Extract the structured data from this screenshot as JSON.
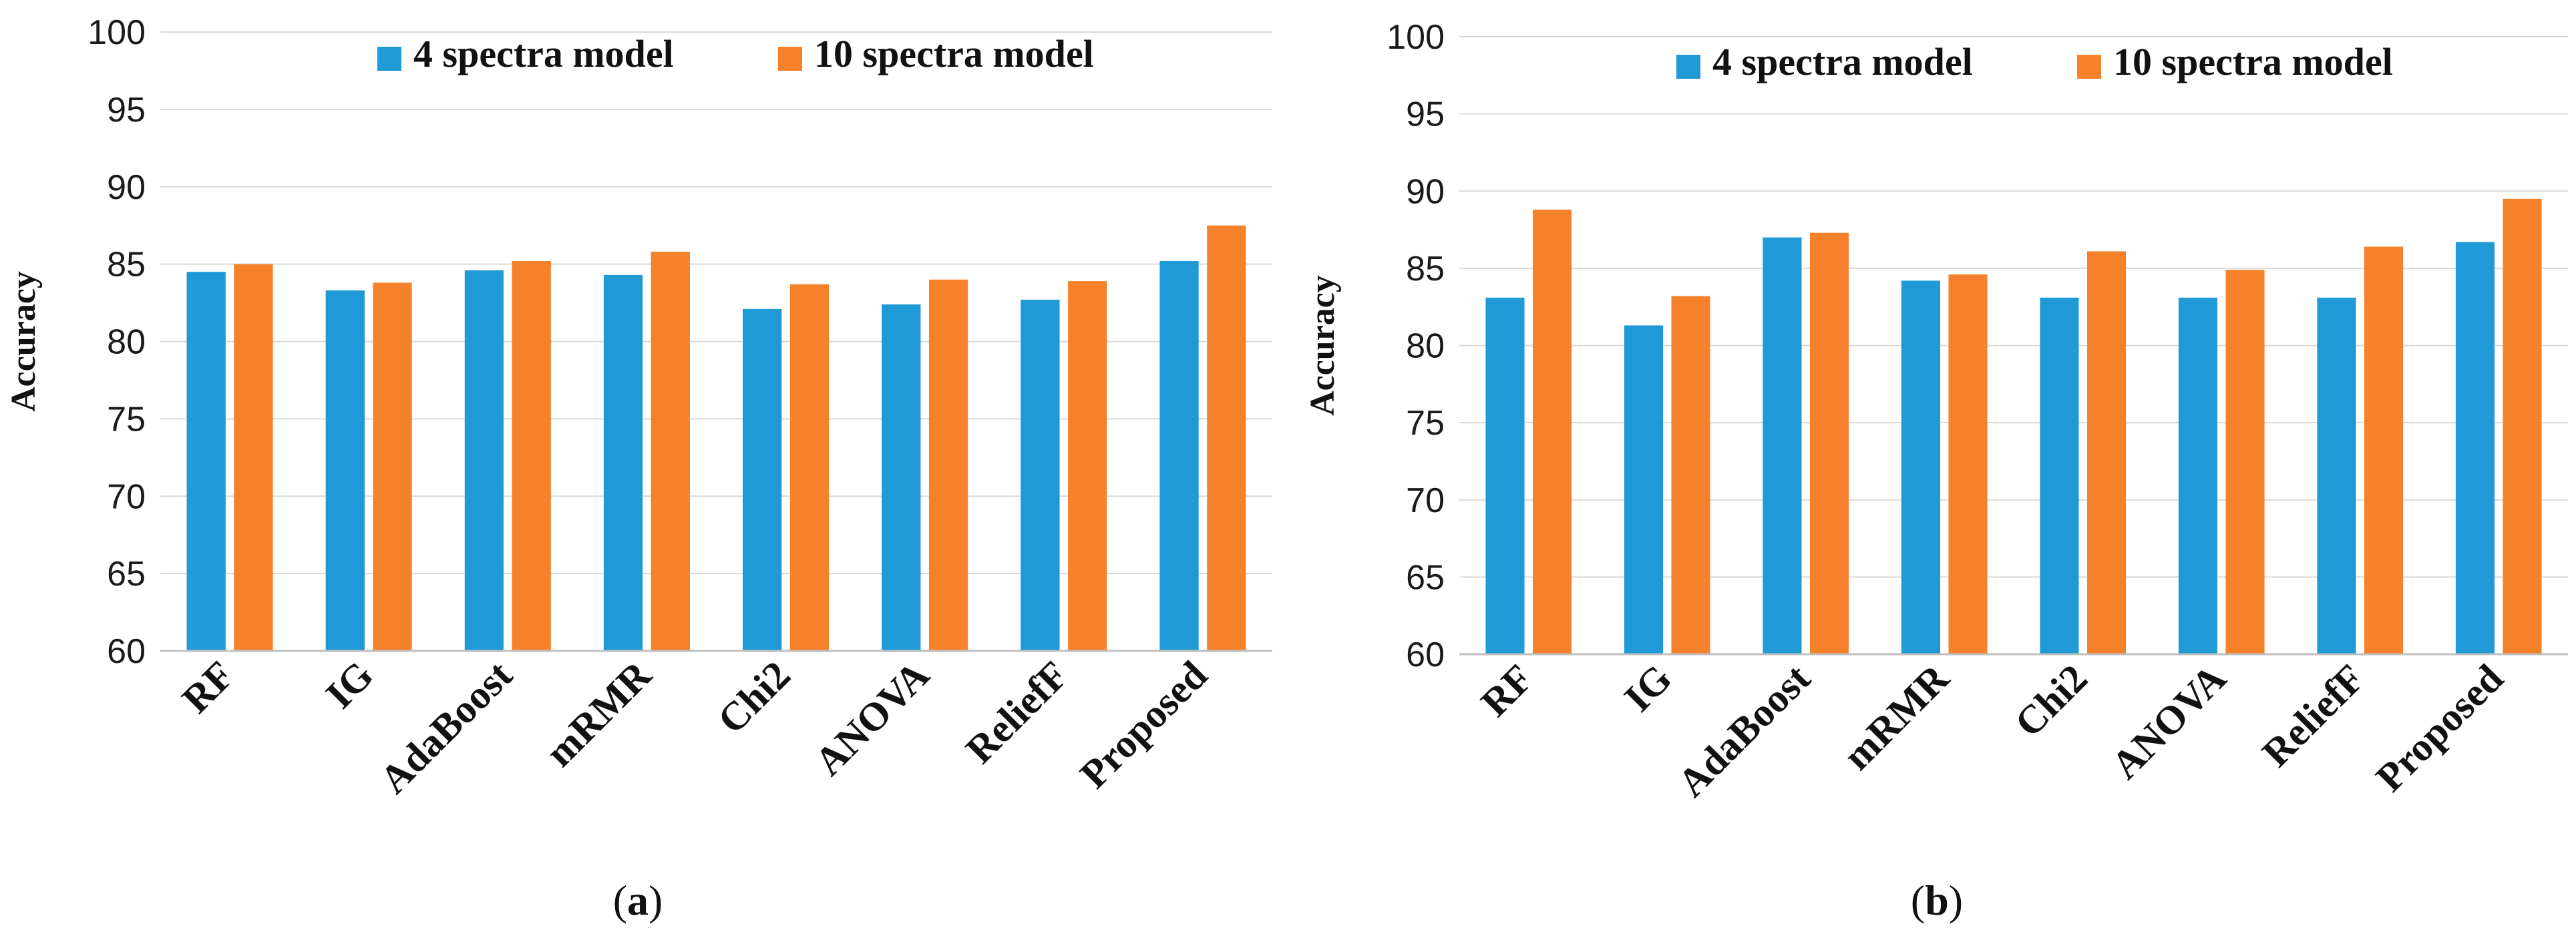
{
  "chart_data": [
    {
      "panel": "a",
      "type": "bar",
      "categories": [
        "RF",
        "IG",
        "AdaBoost",
        "mRMR",
        "Chi2",
        "ANOVA",
        "ReliefF",
        "Proposed"
      ],
      "series": [
        {
          "name": "4 spectra model",
          "color": "#1f9ad6",
          "values": [
            84.5,
            83.3,
            84.6,
            84.3,
            82.1,
            82.4,
            82.7,
            85.2
          ]
        },
        {
          "name": "10 spectra model",
          "color": "#f5822a",
          "values": [
            85.0,
            83.8,
            85.2,
            85.8,
            83.7,
            84.0,
            83.9,
            87.5
          ]
        }
      ],
      "xlabel": "",
      "ylabel": "Accuracy",
      "ylim": [
        60,
        100
      ],
      "yticks": [
        60,
        65,
        70,
        75,
        80,
        85,
        90,
        95,
        100
      ],
      "grid": true,
      "legend_position": "top"
    },
    {
      "panel": "b",
      "type": "bar",
      "categories": [
        "RF",
        "IG",
        "AdaBoost",
        "mRMR",
        "Chi2",
        "ANOVA",
        "ReliefF",
        "Proposed"
      ],
      "series": [
        {
          "name": "4 spectra model",
          "color": "#1f9ad6",
          "values": [
            83.1,
            81.3,
            87.0,
            84.2,
            83.1,
            83.1,
            83.1,
            86.7
          ]
        },
        {
          "name": "10 spectra model",
          "color": "#f5822a",
          "values": [
            88.8,
            83.2,
            87.3,
            84.6,
            86.1,
            84.9,
            86.4,
            89.5
          ]
        }
      ],
      "xlabel": "",
      "ylabel": "Accuracy",
      "ylim": [
        60,
        100
      ],
      "yticks": [
        60,
        65,
        70,
        75,
        80,
        85,
        90,
        95,
        100
      ],
      "grid": true,
      "legend_position": "top"
    }
  ],
  "panel_labels": [
    "a",
    "b"
  ]
}
